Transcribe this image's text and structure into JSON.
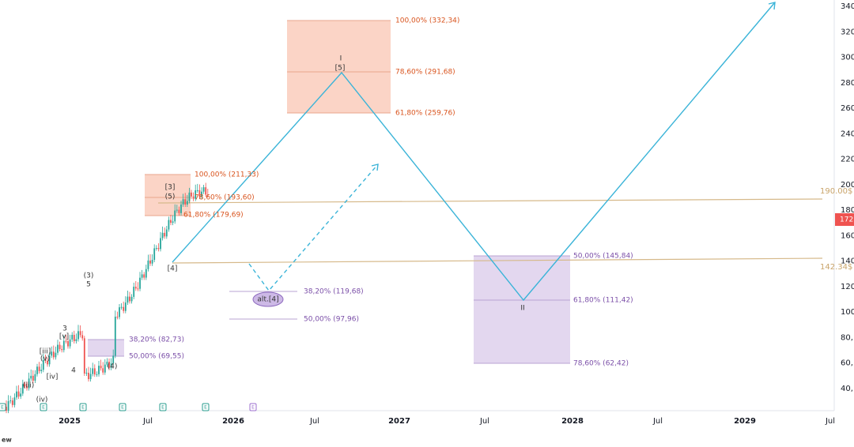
{
  "price_axis": {
    "labels": [
      "340,",
      "320,",
      "300,",
      "280,",
      "260,",
      "240,",
      "220",
      "200,",
      "180,",
      "160,",
      "140,",
      "120,",
      "100,",
      "80,",
      "60,",
      "40,"
    ],
    "current": "172"
  },
  "time_axis": {
    "labels": [
      "2025",
      "Jul",
      "2026",
      "Jul",
      "2027",
      "Jul",
      "2028",
      "Jul",
      "2029",
      "Jul"
    ]
  },
  "levels": [
    "190.00$",
    "142.34$"
  ],
  "fib_labels": [
    "100,00% (332,34)",
    "78,60% (291,68)",
    "61,80% (259,76)",
    "100,00% (211,33)",
    "78,60% (193,60)",
    "61,80% (179,69)",
    "50,00% (145,84)",
    "61,80% (111,42)",
    "78,60% (62,42)",
    "38,20% (119,68)",
    "50,00% (97,96)",
    "38,20% (82,73)",
    "50,00% (69,55)"
  ],
  "wave_labels": [
    "I",
    "[5]",
    "II",
    "[3]",
    "(5)",
    "[4]",
    "alt.[4]",
    "(3)",
    "5",
    "3",
    "[v]",
    "[iii]",
    "(v)",
    "4",
    "(4)",
    "[iv]",
    "(iii)",
    "(iv)"
  ],
  "earnings_markers": [
    "E",
    "E",
    "E",
    "E",
    "E",
    "E",
    "E"
  ],
  "footer": "ew"
}
